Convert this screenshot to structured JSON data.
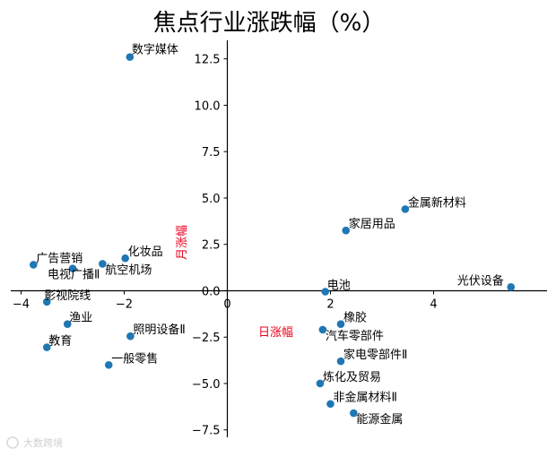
{
  "chart_data": {
    "type": "scatter",
    "title": "焦点行业涨跌幅（%）",
    "xlabel": "日涨幅",
    "ylabel": "月涨幅",
    "xlim": [
      -4.2,
      6.2
    ],
    "ylim": [
      -7.9,
      13.5
    ],
    "x_ticks": [
      -4,
      -2,
      0,
      2,
      4
    ],
    "y_ticks": [
      -7.5,
      -5.0,
      -2.5,
      0.0,
      2.5,
      5.0,
      7.5,
      10.0,
      12.5
    ],
    "x_tick_labels": [
      "−4",
      "−2",
      "0",
      "2",
      "4"
    ],
    "y_tick_labels": [
      "−7.5",
      "−5.0",
      "−2.5",
      "0.0",
      "2.5",
      "5.0",
      "7.5",
      "10.0",
      "12.5"
    ],
    "point_color": "#1f77b4",
    "label_color": "#e8001c",
    "points": [
      {
        "name": "数字媒体",
        "x": -1.89,
        "y": 12.6
      },
      {
        "name": "金属新材料",
        "x": 3.45,
        "y": 4.4
      },
      {
        "name": "家居用品",
        "x": 2.3,
        "y": 3.25
      },
      {
        "name": "化妆品",
        "x": -1.98,
        "y": 1.75
      },
      {
        "name": "航空机场",
        "x": -2.42,
        "y": 1.45
      },
      {
        "name": "广告营销",
        "x": -3.76,
        "y": 1.4
      },
      {
        "name": "电视广播Ⅱ",
        "x": -3.0,
        "y": 1.2
      },
      {
        "name": "光伏设备",
        "x": 5.5,
        "y": 0.2
      },
      {
        "name": "电池",
        "x": 1.9,
        "y": -0.05
      },
      {
        "name": "影视院线",
        "x": -3.5,
        "y": -0.6
      },
      {
        "name": "渔业",
        "x": -3.1,
        "y": -1.8
      },
      {
        "name": "橡胶",
        "x": 2.2,
        "y": -1.8
      },
      {
        "name": "汽车零部件",
        "x": 1.85,
        "y": -2.1
      },
      {
        "name": "照明设备Ⅱ",
        "x": -1.88,
        "y": -2.45
      },
      {
        "name": "教育",
        "x": -3.5,
        "y": -3.05
      },
      {
        "name": "家电零部件Ⅱ",
        "x": 2.2,
        "y": -3.8
      },
      {
        "name": "一般零售",
        "x": -2.3,
        "y": -4.0
      },
      {
        "name": "炼化及贸易",
        "x": 1.8,
        "y": -5.0
      },
      {
        "name": "非金属材料Ⅱ",
        "x": 2.0,
        "y": -6.1
      },
      {
        "name": "能源金属",
        "x": 2.45,
        "y": -6.6
      }
    ]
  },
  "watermark": "大数跨境"
}
